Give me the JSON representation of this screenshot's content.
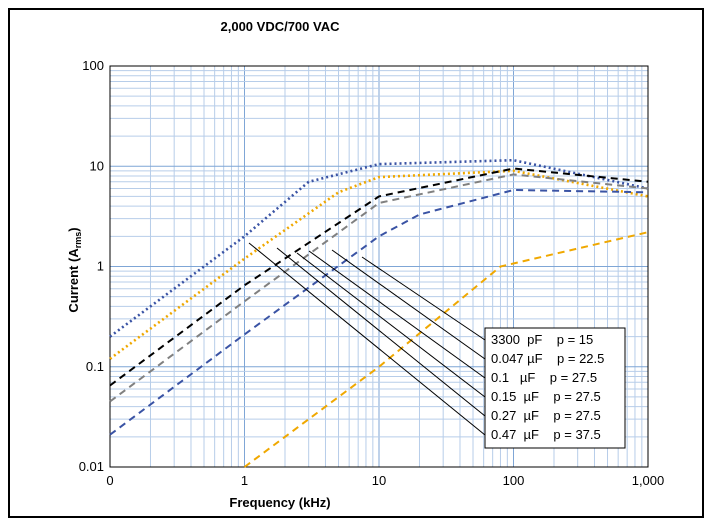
{
  "chart_data": {
    "type": "line",
    "title": "2,000 VDC/700 VAC",
    "xlabel": "Frequency (kHz)",
    "ylabel_main": "Current (A",
    "ylabel_sub": "rms",
    "ylabel_end": ")",
    "x_scale": "log",
    "y_scale": "log",
    "xlim": [
      0.1,
      1000
    ],
    "ylim": [
      0.01,
      100
    ],
    "x_tick_labels": [
      "0",
      "1",
      "10",
      "100",
      "1,000"
    ],
    "y_tick_labels": [
      "0.01",
      "0.1",
      "1",
      "10",
      "100"
    ],
    "grid": true,
    "series": [
      {
        "name": "0.47 µF   p = 37.5",
        "color": "#3a53a4",
        "dash": "dotted",
        "x": [
          0.1,
          1,
          3,
          10,
          100,
          1000
        ],
        "y": [
          0.2,
          2,
          7,
          10.5,
          11.5,
          6
        ]
      },
      {
        "name": "0.27 µF   p = 27.5",
        "color": "#f0a800",
        "dash": "dotted",
        "x": [
          0.1,
          1,
          5,
          10,
          100,
          1000
        ],
        "y": [
          0.12,
          1.2,
          5.5,
          7.8,
          9,
          5
        ]
      },
      {
        "name": "0.15 µF   p = 27.5",
        "color": "#000000",
        "dash": "dashed",
        "x": [
          0.1,
          1,
          10,
          100,
          1000
        ],
        "y": [
          0.065,
          0.65,
          5,
          9.5,
          7
        ]
      },
      {
        "name": "0.1 µF   p = 27.5",
        "color": "#808080",
        "dash": "dashed",
        "x": [
          0.1,
          1,
          10,
          100,
          1000
        ],
        "y": [
          0.045,
          0.45,
          4.3,
          8.3,
          6
        ]
      },
      {
        "name": "0.047 µF   p = 22.5",
        "color": "#3a53a4",
        "dash": "dashed",
        "x": [
          0.1,
          1,
          10,
          20,
          100,
          1000
        ],
        "y": [
          0.021,
          0.21,
          2,
          3.3,
          5.8,
          5.5
        ]
      },
      {
        "name": "3300 pF   p = 15",
        "color": "#f0a800",
        "dash": "dashed",
        "x": [
          1,
          10,
          80,
          1000
        ],
        "y": [
          0.01,
          0.1,
          1,
          2.2
        ]
      }
    ],
    "legend": {
      "placement": "bottom-right",
      "entries": [
        "3300  pF    p = 15",
        "0.047 µF    p = 22.5",
        "0.1   µF    p = 27.5",
        "0.15  µF    p = 27.5",
        "0.27  µF    p = 27.5",
        "0.47  µF    p = 37.5"
      ]
    }
  }
}
